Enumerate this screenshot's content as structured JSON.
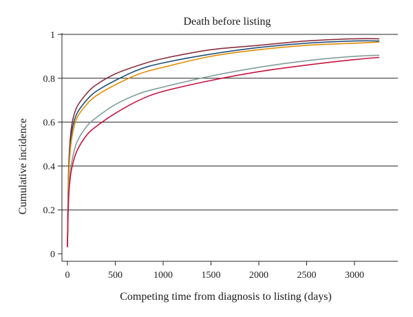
{
  "chart_data": {
    "type": "line",
    "title": "Death before listing",
    "xlabel": "Competing time from diagnosis to listing (days)",
    "ylabel": "Cumulative incidence",
    "xlim": [
      -50,
      3450
    ],
    "ylim": [
      0,
      1
    ],
    "grid": "horizontal",
    "legend": "none",
    "x_ticks": [
      0,
      500,
      1000,
      1500,
      2000,
      2500,
      3000
    ],
    "y_ticks": [
      0,
      0.2,
      0.4,
      0.6,
      0.8,
      1
    ],
    "x_tick_labels": [
      "0",
      "500",
      "1000",
      "1500",
      "2000",
      "2500",
      "3000"
    ],
    "y_tick_labels": [
      "0",
      "0.2",
      "0.4",
      "0.6",
      "0.8",
      "1"
    ],
    "x": [
      0,
      10,
      25,
      50,
      100,
      200,
      300,
      500,
      750,
      1000,
      1500,
      2000,
      2500,
      3000,
      3260
    ],
    "series": [
      {
        "color": "#8b2c3c",
        "values": [
          0.03,
          0.35,
          0.5,
          0.6,
          0.67,
          0.73,
          0.77,
          0.82,
          0.86,
          0.89,
          0.93,
          0.95,
          0.97,
          0.98,
          0.98
        ]
      },
      {
        "color": "#1f4e79",
        "values": [
          0.03,
          0.33,
          0.47,
          0.57,
          0.64,
          0.7,
          0.74,
          0.79,
          0.84,
          0.87,
          0.91,
          0.94,
          0.96,
          0.97,
          0.97
        ]
      },
      {
        "color": "#e08a00",
        "values": [
          0.03,
          0.31,
          0.45,
          0.54,
          0.62,
          0.68,
          0.72,
          0.77,
          0.82,
          0.85,
          0.9,
          0.93,
          0.95,
          0.96,
          0.965
        ]
      },
      {
        "color": "#7f9c9a",
        "values": [
          0.03,
          0.25,
          0.35,
          0.43,
          0.51,
          0.58,
          0.62,
          0.68,
          0.73,
          0.76,
          0.81,
          0.85,
          0.88,
          0.9,
          0.905
        ]
      },
      {
        "color": "#c8103e",
        "values": [
          0.03,
          0.23,
          0.33,
          0.4,
          0.47,
          0.54,
          0.58,
          0.64,
          0.7,
          0.74,
          0.79,
          0.83,
          0.86,
          0.885,
          0.895
        ]
      }
    ]
  }
}
